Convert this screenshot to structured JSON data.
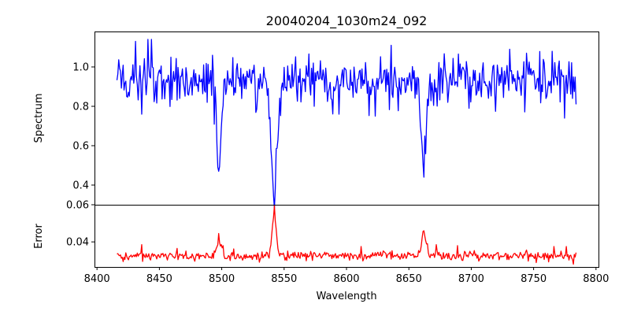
{
  "chart_data": {
    "title": "20040204_1030m24_092",
    "xlabel": "Wavelength",
    "x_range": [
      8416,
      8784
    ],
    "xlim": [
      8398,
      8802
    ],
    "xticks": [
      8400,
      8450,
      8500,
      8550,
      8600,
      8650,
      8700,
      8750,
      8800
    ],
    "panels": [
      {
        "name": "spectrum",
        "type": "line",
        "ylabel": "Spectrum",
        "ylim": [
          0.3,
          1.18
        ],
        "yticks": [
          0.4,
          0.6,
          0.8,
          1.0
        ],
        "ytick_labels": [
          "0.4",
          "0.6",
          "0.8",
          "1.0"
        ],
        "color": "#0000ff",
        "baseline": 0.93,
        "noise": 0.06,
        "spikes": [
          [
            8431.0,
            1.13
          ],
          [
            8436.0,
            0.76
          ],
          [
            8441.0,
            1.14
          ],
          [
            8444.0,
            1.14
          ],
          [
            8466.0,
            0.84
          ],
          [
            8488.0,
            0.82
          ],
          [
            8497.5,
            0.47
          ],
          [
            8542.3,
            0.28
          ],
          [
            8574.0,
            0.8
          ],
          [
            8594.0,
            0.76
          ],
          [
            8623.0,
            0.75
          ],
          [
            8636.0,
            1.11
          ],
          [
            8662.0,
            0.44
          ],
          [
            8681.0,
            0.82
          ],
          [
            8698.0,
            0.79
          ],
          [
            8731.0,
            1.09
          ],
          [
            8744.0,
            1.07
          ],
          [
            8775.0,
            0.74
          ],
          [
            8781.0,
            0.84
          ]
        ],
        "absorption_lines": [
          {
            "center": 8498.0,
            "depth": 0.4,
            "width": 1.6
          },
          {
            "center": 8542.0,
            "depth": 0.58,
            "width": 2.4
          },
          {
            "center": 8662.0,
            "depth": 0.43,
            "width": 2.0
          }
        ]
      },
      {
        "name": "error",
        "type": "line",
        "ylabel": "Error",
        "ylim": [
          0.0265,
          0.06
        ],
        "yticks": [
          0.04,
          0.06
        ],
        "ytick_labels": [
          "0.04",
          "0.06"
        ],
        "color": "#ff0000",
        "baseline": 0.0325,
        "noise": 0.0012,
        "spikes": [
          [
            8436.0,
            0.0385
          ],
          [
            8464.0,
            0.0365
          ],
          [
            8497.5,
            0.0445
          ],
          [
            8542.0,
            0.0595
          ],
          [
            8612.0,
            0.0375
          ],
          [
            8662.0,
            0.046
          ],
          [
            8672.0,
            0.0385
          ],
          [
            8689.0,
            0.038
          ],
          [
            8766.0,
            0.0375
          ],
          [
            8776.0,
            0.0375
          ],
          [
            8782.0,
            0.028
          ]
        ],
        "emission_lines": [
          {
            "center": 8498.0,
            "height": 0.008,
            "width": 1.6
          },
          {
            "center": 8542.0,
            "height": 0.022,
            "width": 1.6
          },
          {
            "center": 8662.0,
            "height": 0.011,
            "width": 2.0
          }
        ]
      }
    ]
  }
}
